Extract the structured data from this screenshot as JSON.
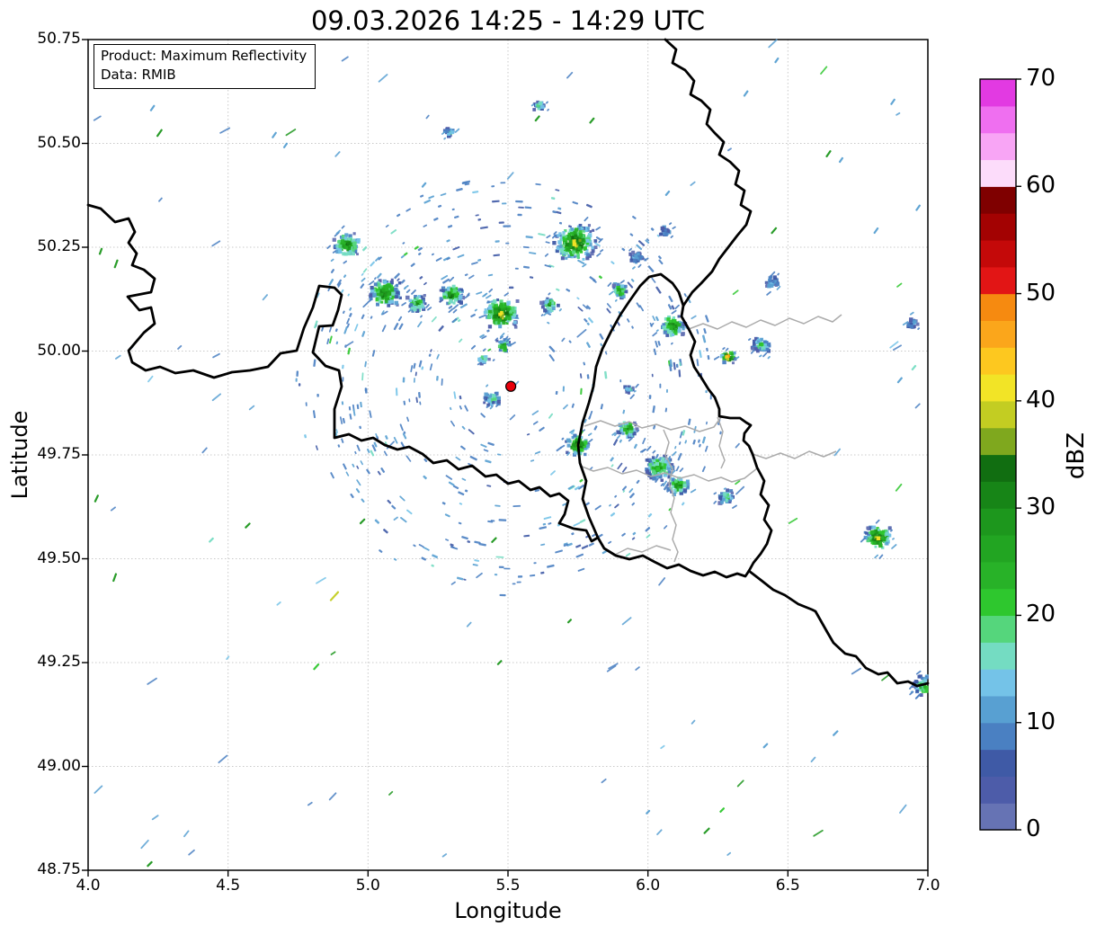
{
  "title": "09.03.2026 14:25 - 14:29 UTC",
  "annotation": {
    "line1": "Product: Maximum Reflectivity",
    "line2": "Data: RMIB"
  },
  "axes": {
    "xlabel": "Longitude",
    "ylabel": "Latitude",
    "xlim": [
      4.0,
      7.0
    ],
    "ylim": [
      48.75,
      50.75
    ],
    "x_ticks": [
      {
        "v": 4.0,
        "label": "4.0"
      },
      {
        "v": 4.5,
        "label": "4.5"
      },
      {
        "v": 5.0,
        "label": "5.0"
      },
      {
        "v": 5.5,
        "label": "5.5"
      },
      {
        "v": 6.0,
        "label": "6.0"
      },
      {
        "v": 6.5,
        "label": "6.5"
      },
      {
        "v": 7.0,
        "label": "7.0"
      }
    ],
    "y_ticks": [
      {
        "v": 50.75,
        "label": "50.75"
      },
      {
        "v": 50.5,
        "label": "50.50"
      },
      {
        "v": 50.25,
        "label": "50.25"
      },
      {
        "v": 50.0,
        "label": "50.00"
      },
      {
        "v": 49.75,
        "label": "49.75"
      },
      {
        "v": 49.5,
        "label": "49.50"
      },
      {
        "v": 49.25,
        "label": "49.25"
      },
      {
        "v": 49.0,
        "label": "49.00"
      },
      {
        "v": 48.75,
        "label": "48.75"
      }
    ],
    "grid_color": "#c9c9c9"
  },
  "colorbar": {
    "label": "dBZ",
    "vmin": 0,
    "vmax": 70,
    "ticks": [
      {
        "v": 0,
        "label": "0"
      },
      {
        "v": 10,
        "label": "10"
      },
      {
        "v": 20,
        "label": "20"
      },
      {
        "v": 30,
        "label": "30"
      },
      {
        "v": 40,
        "label": "40"
      },
      {
        "v": 50,
        "label": "50"
      },
      {
        "v": 60,
        "label": "60"
      },
      {
        "v": 70,
        "label": "70"
      }
    ],
    "colors": [
      "#6673b4",
      "#4d5ca9",
      "#3f5aa6",
      "#4a80c2",
      "#58a0d2",
      "#74c3e8",
      "#74dcc2",
      "#55d67c",
      "#2ec72e",
      "#28b228",
      "#22a522",
      "#1d971d",
      "#178517",
      "#116e11",
      "#7fa81e",
      "#c3cd22",
      "#f2e426",
      "#fdc81f",
      "#fba61b",
      "#f68a10",
      "#e21515",
      "#c40909",
      "#a30202",
      "#7f0000",
      "#fcdcfa",
      "#f8a5f5",
      "#ef6ff0",
      "#e23ae2"
    ]
  },
  "radar_site": {
    "lon": 5.51,
    "lat": 49.915,
    "color": "#e8000b"
  },
  "map": {
    "country_border_color": "#000000",
    "region_border_color": "#ababab",
    "clusters": [
      {
        "lon": 4.925,
        "lat": 50.255,
        "r": 13,
        "core": 13
      },
      {
        "lon": 5.06,
        "lat": 50.14,
        "r": 15,
        "core": 13
      },
      {
        "lon": 5.175,
        "lat": 50.115,
        "r": 9,
        "core": 11
      },
      {
        "lon": 5.3,
        "lat": 50.135,
        "r": 11,
        "core": 13
      },
      {
        "lon": 5.475,
        "lat": 50.09,
        "r": 16,
        "core": 16
      },
      {
        "lon": 5.65,
        "lat": 50.11,
        "r": 8,
        "core": 11
      },
      {
        "lon": 5.74,
        "lat": 50.26,
        "r": 19,
        "core": 16
      },
      {
        "lon": 5.96,
        "lat": 50.225,
        "r": 7,
        "core": 4
      },
      {
        "lon": 5.9,
        "lat": 50.145,
        "r": 8,
        "core": 11
      },
      {
        "lon": 6.088,
        "lat": 50.06,
        "r": 12,
        "core": 13
      },
      {
        "lon": 6.287,
        "lat": 49.986,
        "r": 7,
        "core": 19
      },
      {
        "lon": 6.406,
        "lat": 50.016,
        "r": 9,
        "core": 8
      },
      {
        "lon": 6.44,
        "lat": 50.165,
        "r": 7,
        "core": 4
      },
      {
        "lon": 5.75,
        "lat": 49.774,
        "r": 11,
        "core": 16
      },
      {
        "lon": 5.927,
        "lat": 49.811,
        "r": 9,
        "core": 13
      },
      {
        "lon": 6.04,
        "lat": 49.72,
        "r": 14,
        "core": 11
      },
      {
        "lon": 6.11,
        "lat": 49.677,
        "r": 10,
        "core": 13
      },
      {
        "lon": 6.28,
        "lat": 49.648,
        "r": 8,
        "core": 8
      },
      {
        "lon": 6.823,
        "lat": 49.551,
        "r": 13,
        "core": 16
      },
      {
        "lon": 6.99,
        "lat": 49.196,
        "r": 11,
        "core": 11
      },
      {
        "lon": 5.442,
        "lat": 49.886,
        "r": 8,
        "core": 8
      },
      {
        "lon": 5.413,
        "lat": 49.98,
        "r": 6,
        "core": 8
      },
      {
        "lon": 5.484,
        "lat": 50.012,
        "r": 7,
        "core": 11
      },
      {
        "lon": 6.062,
        "lat": 50.289,
        "r": 6,
        "core": 4
      },
      {
        "lon": 5.612,
        "lat": 50.59,
        "r": 6,
        "core": 6
      },
      {
        "lon": 5.29,
        "lat": 50.527,
        "r": 5,
        "core": 6
      },
      {
        "lon": 6.945,
        "lat": 50.066,
        "r": 6,
        "core": 4
      },
      {
        "lon": 5.934,
        "lat": 49.908,
        "r": 5,
        "core": 6
      }
    ],
    "dashes": [
      {
        "lon": 4.23,
        "lat": 50.585,
        "a": -55,
        "len": 8,
        "c": 4
      },
      {
        "lon": 4.255,
        "lat": 50.525,
        "a": -55,
        "len": 10,
        "c": 11
      },
      {
        "lon": 4.665,
        "lat": 50.52,
        "a": -55,
        "len": 8,
        "c": 4
      },
      {
        "lon": 4.705,
        "lat": 50.495,
        "a": -55,
        "len": 7,
        "c": 4
      },
      {
        "lon": 5.605,
        "lat": 50.56,
        "a": -50,
        "len": 8,
        "c": 11
      },
      {
        "lon": 5.8,
        "lat": 50.555,
        "a": -50,
        "len": 8,
        "c": 11
      },
      {
        "lon": 6.645,
        "lat": 50.475,
        "a": -55,
        "len": 9,
        "c": 11
      },
      {
        "lon": 6.69,
        "lat": 50.46,
        "a": -55,
        "len": 7,
        "c": 4
      },
      {
        "lon": 6.815,
        "lat": 50.29,
        "a": -55,
        "len": 8,
        "c": 4
      },
      {
        "lon": 6.875,
        "lat": 50.6,
        "a": -55,
        "len": 8,
        "c": 4
      },
      {
        "lon": 6.965,
        "lat": 50.345,
        "a": -55,
        "len": 8,
        "c": 4
      },
      {
        "lon": 4.1,
        "lat": 50.21,
        "a": -70,
        "len": 10,
        "c": 11
      },
      {
        "lon": 4.045,
        "lat": 50.24,
        "a": -70,
        "len": 8,
        "c": 11
      },
      {
        "lon": 4.03,
        "lat": 49.645,
        "a": -65,
        "len": 9,
        "c": 11
      },
      {
        "lon": 4.095,
        "lat": 49.455,
        "a": -70,
        "len": 10,
        "c": 11
      },
      {
        "lon": 4.88,
        "lat": 49.41,
        "a": -48,
        "len": 14,
        "c": 15
      },
      {
        "lon": 4.815,
        "lat": 49.24,
        "a": -48,
        "len": 9,
        "c": 8
      },
      {
        "lon": 4.98,
        "lat": 49.59,
        "a": -45,
        "len": 8,
        "c": 11
      },
      {
        "lon": 4.57,
        "lat": 49.58,
        "a": -45,
        "len": 8,
        "c": 11
      },
      {
        "lon": 4.44,
        "lat": 49.545,
        "a": -45,
        "len": 7,
        "c": 6
      },
      {
        "lon": 5.45,
        "lat": 49.545,
        "a": -45,
        "len": 8,
        "c": 11
      },
      {
        "lon": 5.47,
        "lat": 49.25,
        "a": -45,
        "len": 7,
        "c": 11
      },
      {
        "lon": 5.72,
        "lat": 49.35,
        "a": -45,
        "len": 6,
        "c": 11
      },
      {
        "lon": 6.21,
        "lat": 48.845,
        "a": -45,
        "len": 9,
        "c": 11
      },
      {
        "lon": 6.265,
        "lat": 48.895,
        "a": -45,
        "len": 7,
        "c": 8
      },
      {
        "lon": 6.0,
        "lat": 48.89,
        "a": -45,
        "len": 6,
        "c": 4
      },
      {
        "lon": 4.22,
        "lat": 48.765,
        "a": -45,
        "len": 8,
        "c": 11
      },
      {
        "lon": 6.67,
        "lat": 49.08,
        "a": -45,
        "len": 8,
        "c": 4
      },
      {
        "lon": 6.42,
        "lat": 49.05,
        "a": -45,
        "len": 7,
        "c": 4
      },
      {
        "lon": 6.35,
        "lat": 50.62,
        "a": -55,
        "len": 8,
        "c": 4
      },
      {
        "lon": 6.46,
        "lat": 50.7,
        "a": -55,
        "len": 7,
        "c": 4
      },
      {
        "lon": 6.45,
        "lat": 50.29,
        "a": -50,
        "len": 9,
        "c": 11
      },
      {
        "lon": 6.9,
        "lat": 49.93,
        "a": -50,
        "len": 8,
        "c": 4
      },
      {
        "lon": 6.95,
        "lat": 49.96,
        "a": -50,
        "len": 7,
        "c": 6
      },
      {
        "lon": 5.2,
        "lat": 50.4,
        "a": -50,
        "len": 7,
        "c": 4
      },
      {
        "lon": 6.07,
        "lat": 50.38,
        "a": -50,
        "len": 7,
        "c": 4
      }
    ],
    "speckle_ring": {
      "count": 520,
      "r_min": 25,
      "r_max": 240,
      "seed": 7
    },
    "scatter_field": {
      "count": 85,
      "seed": 13
    }
  }
}
